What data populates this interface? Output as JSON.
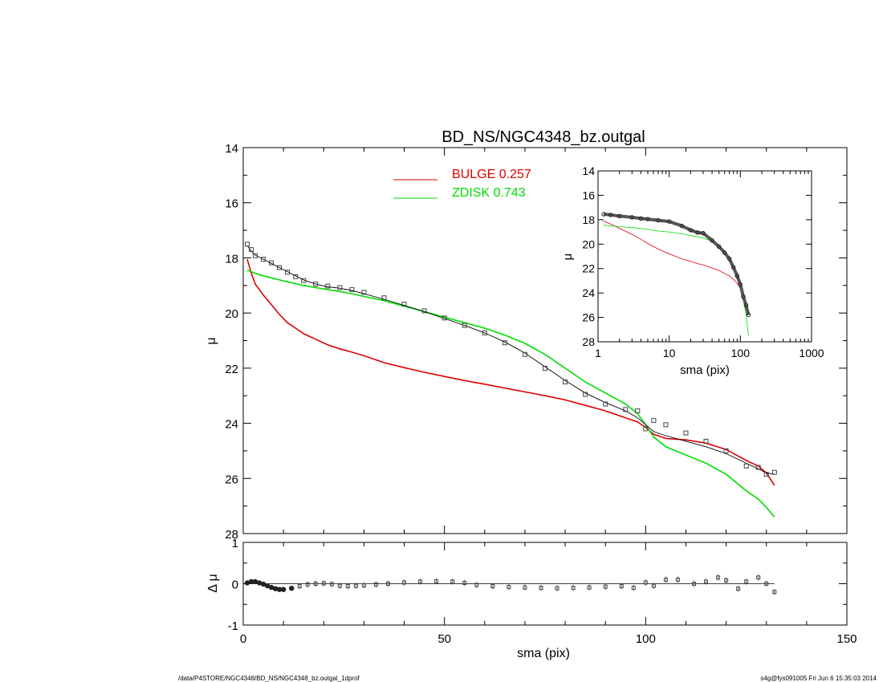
{
  "title": "BD_NS/NGC4348_bz.outgal",
  "footer": {
    "left": "/data/P4STORE/NGC4348/BD_NS/NGC4348_bz.outgal_1dprof",
    "right": "s4g@fys091005  Fri Jun  6 15:35:03 2014"
  },
  "colors": {
    "bulge": "#dd0000",
    "disk": "#00dd00",
    "data": "#000000",
    "model": "#000000"
  },
  "chart_data": [
    {
      "type": "line",
      "name": "main-profile",
      "xlabel": "sma (pix)",
      "ylabel": "μ",
      "xlim": [
        0,
        150
      ],
      "ylim": [
        28,
        14
      ],
      "xticks": [
        0,
        50,
        100,
        150
      ],
      "yticks": [
        14,
        16,
        18,
        20,
        22,
        24,
        26,
        28
      ],
      "legend": [
        {
          "label": "BULGE",
          "value": "0.257",
          "color": "#dd0000"
        },
        {
          "label": "ZDISK",
          "value": "0.743",
          "color": "#00dd00"
        }
      ],
      "legend_position": "top-center",
      "x_points": [
        1,
        2,
        3,
        5,
        7,
        9,
        11,
        13,
        15,
        18,
        21,
        24,
        27,
        30,
        35,
        40,
        45,
        50,
        55,
        60,
        65,
        70,
        75,
        80,
        85,
        90,
        95,
        98,
        100,
        102,
        105,
        110,
        115,
        120,
        125,
        128,
        130,
        132
      ],
      "series": [
        {
          "name": "BULGE",
          "values": [
            18.05,
            18.55,
            18.95,
            19.35,
            19.7,
            20.05,
            20.35,
            20.55,
            20.75,
            20.95,
            21.15,
            21.3,
            21.42,
            21.55,
            21.8,
            21.98,
            22.15,
            22.3,
            22.45,
            22.58,
            22.72,
            22.86,
            23.0,
            23.15,
            23.35,
            23.55,
            23.8,
            23.95,
            24.15,
            24.4,
            24.55,
            24.6,
            24.72,
            24.95,
            25.35,
            25.55,
            25.8,
            26.25
          ]
        },
        {
          "name": "ZDISK",
          "values": [
            18.45,
            18.5,
            18.56,
            18.65,
            18.72,
            18.8,
            18.87,
            18.93,
            19.0,
            19.08,
            19.15,
            19.22,
            19.3,
            19.4,
            19.55,
            19.75,
            19.95,
            20.15,
            20.35,
            20.55,
            20.8,
            21.1,
            21.5,
            22.0,
            22.5,
            22.9,
            23.3,
            23.65,
            24.05,
            24.5,
            24.85,
            25.15,
            25.45,
            25.85,
            26.45,
            26.75,
            27.05,
            27.4
          ]
        },
        {
          "name": "model",
          "values": [
            17.55,
            17.75,
            17.9,
            18.05,
            18.2,
            18.35,
            18.5,
            18.65,
            18.8,
            18.95,
            19.05,
            19.1,
            19.18,
            19.3,
            19.5,
            19.72,
            19.95,
            20.2,
            20.45,
            20.72,
            21.05,
            21.45,
            21.95,
            22.45,
            22.9,
            23.25,
            23.55,
            23.8,
            24.05,
            24.3,
            24.45,
            24.65,
            24.85,
            25.1,
            25.45,
            25.65,
            25.8,
            25.85
          ]
        },
        {
          "name": "data",
          "values": [
            17.5,
            17.7,
            17.92,
            18.05,
            18.18,
            18.35,
            18.52,
            18.68,
            18.82,
            18.95,
            19.02,
            19.08,
            19.15,
            19.25,
            19.45,
            19.68,
            19.92,
            20.18,
            20.45,
            20.72,
            21.08,
            21.5,
            22.0,
            22.5,
            22.95,
            23.3,
            23.5,
            23.55,
            24.2,
            23.9,
            24.05,
            24.35,
            24.65,
            25.0,
            25.55,
            25.6,
            25.85,
            25.78
          ]
        }
      ]
    },
    {
      "type": "line",
      "name": "residuals",
      "xlabel": "sma (pix)",
      "ylabel": "Δ μ",
      "xlim": [
        0,
        150
      ],
      "ylim": [
        -1,
        1
      ],
      "xticks": [
        0,
        50,
        100,
        150
      ],
      "yticks": [
        1,
        0,
        -1
      ],
      "x": [
        1,
        2,
        3,
        4,
        5,
        6,
        7,
        8,
        9,
        10,
        12,
        14,
        16,
        18,
        20,
        22,
        24,
        26,
        28,
        30,
        33,
        36,
        40,
        44,
        48,
        52,
        55,
        58,
        62,
        66,
        70,
        74,
        78,
        82,
        86,
        90,
        94,
        97,
        100,
        102,
        105,
        108,
        112,
        115,
        118,
        120,
        123,
        125,
        128,
        130,
        132
      ],
      "values": [
        0.02,
        0.05,
        0.05,
        0.02,
        -0.01,
        -0.05,
        -0.09,
        -0.12,
        -0.14,
        -0.14,
        -0.11,
        -0.06,
        -0.02,
        0.0,
        0.01,
        -0.01,
        -0.05,
        -0.06,
        -0.05,
        -0.04,
        -0.02,
        0.0,
        0.03,
        0.05,
        0.06,
        0.05,
        0.02,
        -0.03,
        -0.06,
        -0.08,
        -0.09,
        -0.1,
        -0.11,
        -0.1,
        -0.09,
        -0.07,
        -0.06,
        -0.1,
        0.03,
        -0.05,
        0.1,
        0.1,
        0.0,
        0.05,
        0.15,
        0.08,
        -0.12,
        0.05,
        0.15,
        0.0,
        -0.2
      ]
    },
    {
      "type": "line",
      "name": "inset-log",
      "xlabel": "sma (pix)",
      "ylabel": "μ",
      "xscale": "log",
      "xlim": [
        1,
        1000
      ],
      "ylim": [
        28,
        14
      ],
      "xticks": [
        1,
        10,
        100,
        1000
      ],
      "yticks": [
        14,
        16,
        18,
        20,
        22,
        24,
        26,
        28
      ],
      "x_points": [
        1.2,
        1.5,
        2,
        3,
        4,
        5,
        7,
        10,
        15,
        20,
        25,
        30,
        40,
        50,
        60,
        70,
        80,
        90,
        100,
        110,
        120,
        130
      ],
      "series": [
        {
          "name": "BULGE",
          "values": [
            18.1,
            18.35,
            18.7,
            19.2,
            19.6,
            19.95,
            20.4,
            20.8,
            21.2,
            21.4,
            21.6,
            21.7,
            21.95,
            22.15,
            22.4,
            22.6,
            22.9,
            23.2,
            23.6,
            24.5,
            25.0,
            25.8
          ]
        },
        {
          "name": "ZDISK",
          "values": [
            18.45,
            18.5,
            18.56,
            18.65,
            18.72,
            18.8,
            18.93,
            19.0,
            19.15,
            19.3,
            19.4,
            19.5,
            19.75,
            20.15,
            20.55,
            21.1,
            21.8,
            22.5,
            23.3,
            24.5,
            25.8,
            27.5
          ]
        },
        {
          "name": "data",
          "values": [
            17.55,
            17.6,
            17.7,
            17.8,
            17.9,
            17.95,
            18.05,
            18.15,
            18.5,
            18.85,
            19.05,
            19.1,
            19.7,
            20.2,
            20.7,
            21.2,
            21.9,
            22.6,
            23.3,
            24.3,
            25.0,
            25.8
          ]
        }
      ]
    }
  ]
}
